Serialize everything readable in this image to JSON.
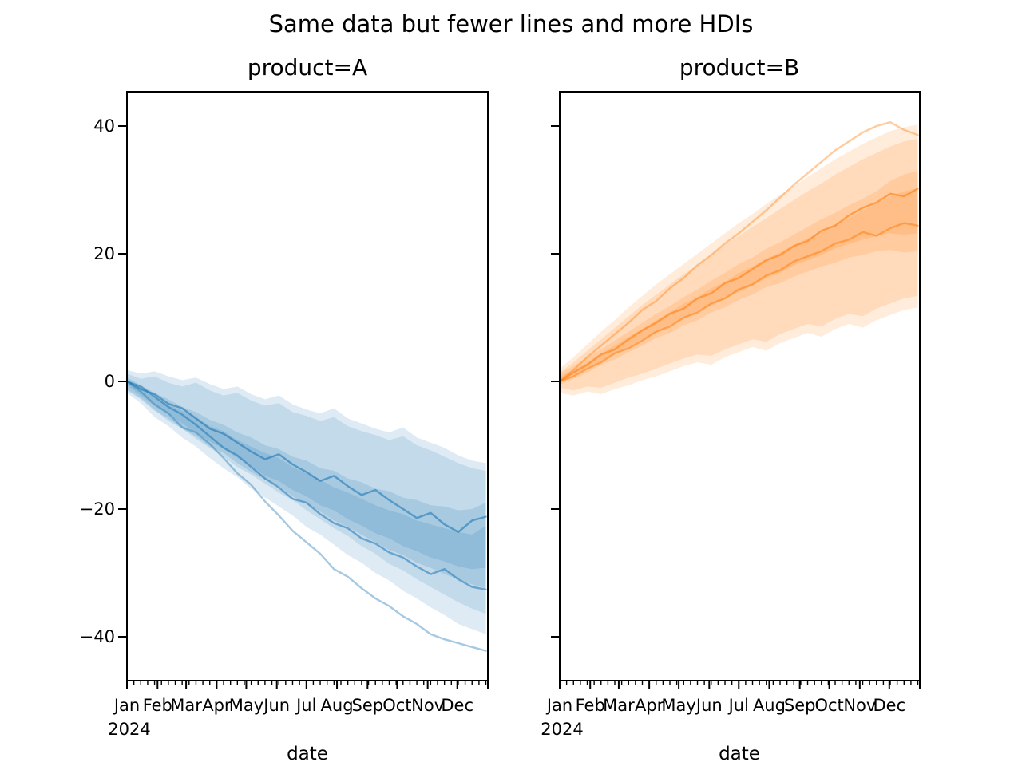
{
  "figure": {
    "suptitle": "Same data but fewer lines and more HDIs",
    "background": "#ffffff",
    "text_color": "#000000"
  },
  "chart_data": [
    {
      "type": "line",
      "title": "product=A",
      "xlabel": "date",
      "ylabel": "",
      "color": "#1f77b4",
      "legend": "none",
      "grid": false,
      "xlim_dates": [
        "2024-01-01",
        "2025-01-01"
      ],
      "ylim": [
        -46.9,
        45.4
      ],
      "yticks": [
        40,
        20,
        0,
        -20,
        -40
      ],
      "y_tick_labels": [
        "40",
        "20",
        "0",
        "−20",
        "−40"
      ],
      "x_tick_months": [
        "Jan",
        "Feb",
        "Mar",
        "Apr",
        "May",
        "Jun",
        "Jul",
        "Aug",
        "Sep",
        "Oct",
        "Nov",
        "Dec"
      ],
      "year_label": "2024",
      "x_minor_tick_interval_days": 7,
      "x_days": [
        0,
        14,
        28,
        42,
        56,
        70,
        84,
        98,
        112,
        126,
        140,
        154,
        168,
        182,
        196,
        210,
        224,
        238,
        252,
        266,
        280,
        294,
        308,
        322,
        336,
        350,
        364
      ],
      "bands": [
        {
          "name": "hdi-wide-1",
          "alpha": 0.15,
          "lower": [
            -1.8,
            -3.4,
            -5.6,
            -7.0,
            -8.8,
            -10.2,
            -12.0,
            -13.6,
            -15.0,
            -16.8,
            -18.2,
            -19.6,
            -21.0,
            -22.8,
            -24.0,
            -25.6,
            -27.2,
            -28.4,
            -30.0,
            -31.2,
            -32.8,
            -34.0,
            -35.4,
            -36.6,
            -38.0,
            -38.8,
            -39.6
          ],
          "upper": [
            1.8,
            1.2,
            1.6,
            0.8,
            0.2,
            0.6,
            -0.4,
            -1.2,
            -0.8,
            -2.0,
            -2.8,
            -2.2,
            -3.6,
            -4.4,
            -5.0,
            -4.2,
            -5.8,
            -6.6,
            -7.4,
            -8.0,
            -7.2,
            -8.8,
            -9.6,
            -10.4,
            -11.6,
            -12.4,
            -12.8
          ]
        },
        {
          "name": "hdi-wide-2",
          "alpha": 0.15,
          "lower": [
            -1.2,
            -2.6,
            -4.4,
            -6.2,
            -7.4,
            -9.0,
            -10.4,
            -11.8,
            -13.4,
            -14.6,
            -16.0,
            -17.4,
            -18.6,
            -20.2,
            -21.6,
            -23.0,
            -24.2,
            -25.8,
            -27.0,
            -28.6,
            -29.6,
            -31.0,
            -32.2,
            -33.4,
            -34.6,
            -35.6,
            -36.4
          ],
          "upper": [
            1.2,
            0.4,
            0.8,
            -0.2,
            -0.8,
            -0.2,
            -1.4,
            -2.2,
            -1.8,
            -3.0,
            -3.8,
            -3.4,
            -4.8,
            -5.4,
            -6.2,
            -5.6,
            -7.0,
            -7.8,
            -8.4,
            -9.2,
            -8.6,
            -10.0,
            -10.8,
            -11.8,
            -12.8,
            -13.6,
            -14.0
          ]
        },
        {
          "name": "hdi-mid-1",
          "alpha": 0.16,
          "lower": [
            -0.6,
            -2.2,
            -3.8,
            -5.2,
            -6.6,
            -8.0,
            -9.4,
            -10.6,
            -12.0,
            -13.2,
            -14.8,
            -15.6,
            -17.0,
            -18.0,
            -19.4,
            -20.2,
            -21.6,
            -22.6,
            -23.8,
            -24.6,
            -25.8,
            -26.6,
            -27.6,
            -28.2,
            -29.0,
            -29.4,
            -29.2
          ],
          "upper": [
            0.6,
            -0.6,
            -1.8,
            -2.8,
            -4.0,
            -4.8,
            -6.0,
            -6.8,
            -8.0,
            -8.8,
            -10.0,
            -10.6,
            -11.8,
            -12.4,
            -13.6,
            -14.0,
            -15.2,
            -15.8,
            -16.8,
            -17.2,
            -18.2,
            -18.6,
            -19.4,
            -19.6,
            -20.2,
            -20.0,
            -19.0
          ]
        },
        {
          "name": "hdi-mid-2",
          "alpha": 0.16,
          "lower": [
            -1.4,
            -2.8,
            -4.6,
            -5.8,
            -7.4,
            -8.6,
            -10.2,
            -11.2,
            -12.8,
            -14.2,
            -15.4,
            -16.4,
            -18.0,
            -19.2,
            -20.4,
            -21.8,
            -22.8,
            -24.0,
            -25.2,
            -26.4,
            -27.2,
            -28.4,
            -29.2,
            -30.2,
            -31.0,
            -31.8,
            -32.4
          ],
          "upper": [
            0.2,
            -1.0,
            -2.4,
            -3.6,
            -4.6,
            -5.6,
            -7.0,
            -7.8,
            -9.2,
            -10.2,
            -11.2,
            -12.0,
            -13.4,
            -14.4,
            -15.4,
            -16.6,
            -17.4,
            -18.4,
            -19.4,
            -20.2,
            -20.8,
            -21.8,
            -22.4,
            -23.0,
            -23.6,
            -24.0,
            -22.6
          ]
        }
      ],
      "series": [
        {
          "name": "sample-line-1",
          "alpha": 0.6,
          "width": 2.4,
          "values": [
            0,
            -1.2,
            -2.0,
            -3.5,
            -4.2,
            -5.8,
            -7.4,
            -8.2,
            -9.6,
            -11.0,
            -12.2,
            -11.4,
            -13.0,
            -14.2,
            -15.6,
            -14.8,
            -16.4,
            -17.8,
            -17.0,
            -18.6,
            -20.0,
            -21.4,
            -20.6,
            -22.4,
            -23.6,
            -21.8,
            -21.2
          ]
        },
        {
          "name": "sample-line-2",
          "alpha": 0.55,
          "width": 2.4,
          "values": [
            0,
            -0.8,
            -2.4,
            -4.0,
            -5.2,
            -6.8,
            -8.6,
            -10.4,
            -11.6,
            -13.4,
            -15.2,
            -16.6,
            -18.4,
            -19.0,
            -20.8,
            -22.2,
            -23.0,
            -24.6,
            -25.4,
            -26.8,
            -27.6,
            -29.0,
            -30.2,
            -29.4,
            -31.0,
            -32.2,
            -32.6
          ]
        },
        {
          "name": "sample-line-3",
          "alpha": 0.4,
          "width": 2.4,
          "values": [
            0,
            -1.6,
            -3.6,
            -5.0,
            -7.2,
            -8.0,
            -9.8,
            -12.0,
            -14.4,
            -16.2,
            -18.8,
            -21.0,
            -23.4,
            -25.2,
            -27.0,
            -29.4,
            -30.6,
            -32.4,
            -34.0,
            -35.2,
            -36.8,
            -38.0,
            -39.6,
            -40.4,
            -41.0,
            -41.6,
            -42.2
          ]
        }
      ]
    },
    {
      "type": "line",
      "title": "product=B",
      "xlabel": "date",
      "ylabel": "",
      "color": "#ff7f0e",
      "legend": "none",
      "grid": false,
      "xlim_dates": [
        "2024-01-01",
        "2025-01-01"
      ],
      "ylim": [
        -46.9,
        45.4
      ],
      "yticks": [
        40,
        20,
        0,
        -20,
        -40
      ],
      "y_tick_labels": [],
      "x_tick_months": [
        "Jan",
        "Feb",
        "Mar",
        "Apr",
        "May",
        "Jun",
        "Jul",
        "Aug",
        "Sep",
        "Oct",
        "Nov",
        "Dec"
      ],
      "year_label": "2024",
      "x_minor_tick_interval_days": 7,
      "x_days": [
        0,
        14,
        28,
        42,
        56,
        70,
        84,
        98,
        112,
        126,
        140,
        154,
        168,
        182,
        196,
        210,
        224,
        238,
        252,
        266,
        280,
        294,
        308,
        322,
        336,
        350,
        364
      ],
      "bands": [
        {
          "name": "hdi-wide-1",
          "alpha": 0.15,
          "lower": [
            -1.8,
            -2.2,
            -1.6,
            -2.0,
            -1.2,
            -0.6,
            0.2,
            0.8,
            1.6,
            2.4,
            3.0,
            2.6,
            3.8,
            4.6,
            5.4,
            4.8,
            6.0,
            6.8,
            7.6,
            7.0,
            8.2,
            9.0,
            8.4,
            9.6,
            10.4,
            11.2,
            11.6
          ],
          "upper": [
            2.0,
            3.8,
            5.8,
            7.8,
            9.6,
            11.6,
            13.4,
            15.2,
            16.8,
            18.4,
            20.0,
            21.6,
            23.2,
            24.8,
            26.2,
            27.8,
            29.2,
            30.6,
            32.0,
            33.4,
            34.8,
            36.0,
            37.2,
            38.2,
            39.2,
            39.8,
            40.2
          ]
        },
        {
          "name": "hdi-wide-2",
          "alpha": 0.15,
          "lower": [
            -1.0,
            -1.4,
            -0.8,
            -1.0,
            -0.2,
            0.6,
            1.2,
            2.0,
            2.8,
            3.6,
            4.2,
            4.0,
            5.0,
            5.8,
            6.6,
            6.2,
            7.4,
            8.2,
            9.0,
            8.6,
            9.8,
            10.6,
            10.2,
            11.4,
            12.2,
            13.0,
            13.4
          ],
          "upper": [
            1.4,
            3.0,
            4.8,
            6.6,
            8.4,
            10.2,
            12.0,
            13.6,
            15.2,
            16.8,
            18.2,
            19.8,
            21.4,
            22.8,
            24.2,
            25.6,
            27.0,
            28.4,
            29.8,
            31.0,
            32.4,
            33.6,
            34.8,
            35.8,
            36.8,
            37.6,
            38.0
          ]
        },
        {
          "name": "hdi-mid-1",
          "alpha": 0.16,
          "lower": [
            -0.5,
            0.4,
            1.4,
            2.6,
            3.4,
            4.6,
            5.6,
            6.8,
            7.6,
            8.8,
            9.6,
            10.8,
            11.6,
            12.8,
            13.6,
            14.8,
            15.4,
            16.4,
            17.2,
            18.0,
            18.6,
            19.4,
            19.8,
            20.4,
            20.6,
            20.2,
            20.4
          ],
          "upper": [
            0.7,
            1.8,
            3.0,
            4.4,
            5.6,
            7.0,
            8.2,
            9.6,
            10.8,
            12.2,
            13.2,
            14.6,
            15.6,
            17.0,
            18.0,
            19.2,
            20.2,
            21.4,
            22.4,
            23.4,
            24.6,
            25.6,
            26.8,
            27.8,
            29.0,
            29.8,
            30.2
          ]
        },
        {
          "name": "hdi-mid-2",
          "alpha": 0.16,
          "lower": [
            0.0,
            1.0,
            2.2,
            3.2,
            4.4,
            5.4,
            6.6,
            7.6,
            8.8,
            9.8,
            11.0,
            11.8,
            13.0,
            14.0,
            15.0,
            16.2,
            17.0,
            18.2,
            19.0,
            19.8,
            20.8,
            21.6,
            22.2,
            22.8,
            23.2,
            23.0,
            23.2
          ],
          "upper": [
            1.2,
            2.4,
            3.8,
            5.0,
            6.4,
            7.8,
            9.2,
            10.6,
            11.8,
            13.2,
            14.4,
            15.8,
            17.0,
            18.4,
            19.4,
            20.8,
            21.8,
            23.0,
            24.2,
            25.4,
            26.4,
            27.6,
            28.6,
            29.8,
            31.4,
            32.4,
            33.0
          ]
        }
      ],
      "series": [
        {
          "name": "sample-line-1",
          "alpha": 0.6,
          "width": 2.4,
          "values": [
            0,
            1.4,
            2.6,
            4.2,
            5.0,
            6.6,
            8.0,
            9.2,
            10.6,
            11.4,
            13.0,
            13.8,
            15.4,
            16.2,
            17.6,
            19.0,
            19.8,
            21.2,
            22.0,
            23.6,
            24.4,
            26.0,
            27.2,
            28.0,
            29.4,
            29.0,
            30.2
          ]
        },
        {
          "name": "sample-line-2",
          "alpha": 0.55,
          "width": 2.4,
          "values": [
            0,
            0.8,
            2.0,
            3.0,
            4.4,
            5.2,
            6.4,
            7.8,
            8.6,
            10.0,
            10.8,
            12.2,
            13.0,
            14.4,
            15.2,
            16.6,
            17.4,
            18.8,
            19.6,
            20.4,
            21.6,
            22.2,
            23.4,
            22.8,
            24.0,
            24.8,
            24.4
          ]
        },
        {
          "name": "sample-line-3",
          "alpha": 0.4,
          "width": 2.4,
          "values": [
            0,
            1.8,
            3.8,
            5.6,
            7.4,
            9.2,
            11.2,
            12.6,
            14.6,
            16.2,
            18.2,
            19.8,
            21.6,
            23.2,
            25.0,
            26.8,
            28.8,
            30.8,
            32.6,
            34.4,
            36.2,
            37.6,
            39.0,
            40.0,
            40.6,
            39.4,
            38.6
          ]
        }
      ]
    }
  ]
}
